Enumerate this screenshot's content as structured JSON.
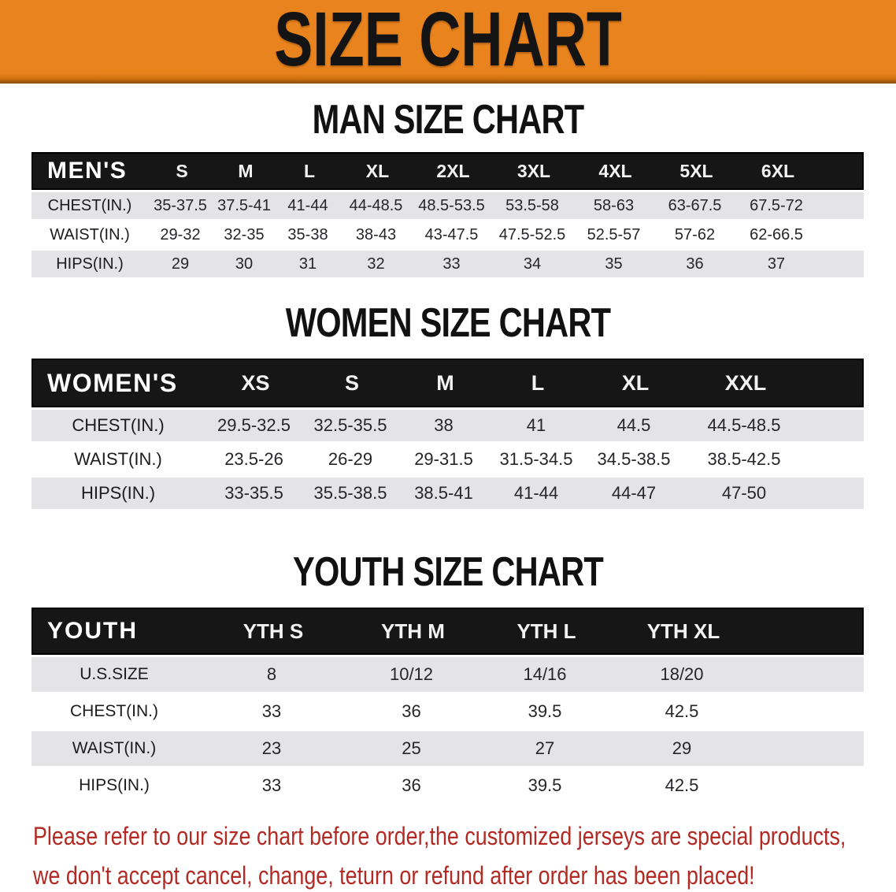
{
  "banner": {
    "title": "SIZE CHART",
    "bg_color": "#E8831E",
    "text_color": "#141414"
  },
  "man": {
    "heading": "MAN SIZE CHART",
    "label": "MEN'S",
    "sizes": [
      "S",
      "M",
      "L",
      "XL",
      "2XL",
      "3XL",
      "4XL",
      "5XL",
      "6XL"
    ],
    "rows": [
      {
        "label": "CHEST(IN.)",
        "values": [
          "35-37.5",
          "37.5-41",
          "41-44",
          "44-48.5",
          "48.5-53.5",
          "53.5-58",
          "58-63",
          "63-67.5",
          "67.5-72"
        ]
      },
      {
        "label": "WAIST(IN.)",
        "values": [
          "29-32",
          "32-35",
          "35-38",
          "38-43",
          "43-47.5",
          "47.5-52.5",
          "52.5-57",
          "57-62",
          "62-66.5"
        ]
      },
      {
        "label": "HIPS(IN.)",
        "values": [
          "29",
          "30",
          "31",
          "32",
          "33",
          "34",
          "35",
          "36",
          "37"
        ]
      }
    ]
  },
  "women": {
    "heading": "WOMEN SIZE CHART",
    "label": "WOMEN'S",
    "sizes": [
      "XS",
      "S",
      "M",
      "L",
      "XL",
      "XXL"
    ],
    "rows": [
      {
        "label": "CHEST(IN.)",
        "values": [
          "29.5-32.5",
          "32.5-35.5",
          "38",
          "41",
          "44.5",
          "44.5-48.5"
        ]
      },
      {
        "label": "WAIST(IN.)",
        "values": [
          "23.5-26",
          "26-29",
          "29-31.5",
          "31.5-34.5",
          "34.5-38.5",
          "38.5-42.5"
        ]
      },
      {
        "label": "HIPS(IN.)",
        "values": [
          "33-35.5",
          "35.5-38.5",
          "38.5-41",
          "41-44",
          "44-47",
          "47-50"
        ]
      }
    ]
  },
  "youth": {
    "heading": "YOUTH SIZE CHART",
    "label": "YOUTH",
    "sizes": [
      "YTH S",
      "YTH M",
      "YTH L",
      "YTH XL"
    ],
    "rows": [
      {
        "label": "U.S.SIZE",
        "values": [
          "8",
          "10/12",
          "14/16",
          "18/20"
        ]
      },
      {
        "label": "CHEST(IN.)",
        "values": [
          "33",
          "36",
          "39.5",
          "42.5"
        ]
      },
      {
        "label": "WAIST(IN.)",
        "values": [
          "23",
          "25",
          "27",
          "29"
        ]
      },
      {
        "label": "HIPS(IN.)",
        "values": [
          "33",
          "36",
          "39.5",
          "42.5"
        ]
      }
    ]
  },
  "footer": {
    "line1": "Please refer to our size chart before order,the customized jerseys are special products,",
    "line2": "we don't accept cancel, change, teturn or refund after order has been placed!",
    "text_color": "#B22A23"
  }
}
